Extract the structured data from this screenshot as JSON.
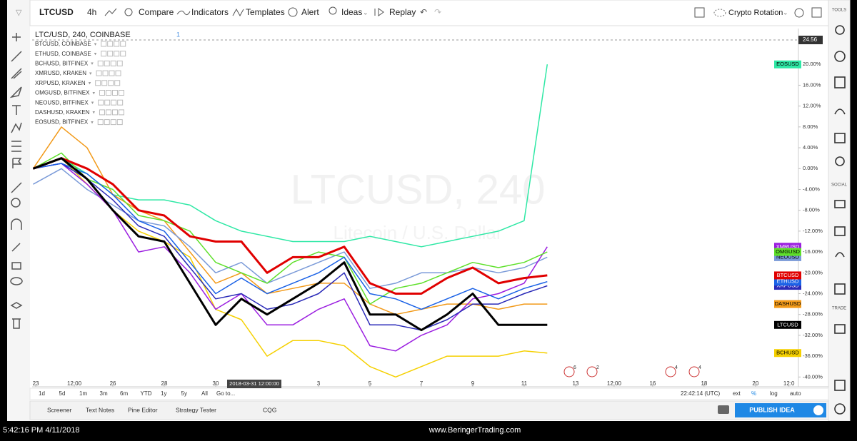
{
  "toolbar": {
    "symbol": "LTCUSD",
    "interval": "4h",
    "compare": "Compare",
    "indicators": "Indicators",
    "templates": "Templates",
    "alert": "Alert",
    "ideas": "Ideas",
    "replay": "Replay",
    "layout": "Crypto Rotation"
  },
  "sidebar": {
    "tools": "TOOLS",
    "social": "SOCIAL",
    "trade": "TRADE"
  },
  "legend": {
    "main": "LTC/USD, 240, COINBASE",
    "main_count": "1",
    "items": [
      "BTCUSD, COINBASE",
      "ETHUSD, COINBASE",
      "BCHUSD, BITFINEX",
      "XMRUSD, KRAKEN",
      "XRPUSD, KRAKEN",
      "OMGUSD, BITFINEX",
      "NEOUSD, BITFINEX",
      "DASHUSD, KRAKEN",
      "EOSUSD, BITFINEX"
    ]
  },
  "watermark": {
    "symbol": "LTCUSD, 240",
    "description": "Litecoin / U.S. Dollar"
  },
  "price_label": "24.56",
  "events": [
    "6",
    "2",
    "4",
    "4"
  ],
  "range_bar": {
    "buttons": [
      "1d",
      "5d",
      "1m",
      "3m",
      "6m",
      "YTD",
      "1y",
      "5y",
      "All"
    ],
    "goto": "Go to...",
    "clock": "22:42:14 (UTC)",
    "options": [
      "ext",
      "%",
      "log",
      "auto"
    ]
  },
  "bottom_tabs": [
    "Screener",
    "Text Notes",
    "Pine Editor",
    "Strategy Tester",
    "CQG"
  ],
  "publish": "PUBLISH IDEA",
  "taskbar": {
    "time": "5:42:16 PM 4/11/2018",
    "site": "www.BeringerTrading.com"
  },
  "chart_data": {
    "type": "line",
    "x": [
      22.9,
      24,
      25,
      26,
      27,
      28,
      29,
      30,
      31,
      32,
      33,
      34,
      35,
      36,
      37,
      38,
      39,
      40,
      41,
      42,
      42.9
    ],
    "xlim": [
      22.86,
      52.67
    ],
    "xticks": [
      {
        "value": 23,
        "label": "23"
      },
      {
        "value": 24.5,
        "label": "12:00"
      },
      {
        "value": 26,
        "label": "26"
      },
      {
        "value": 28,
        "label": "28"
      },
      {
        "value": 30,
        "label": "30"
      },
      {
        "value": 34,
        "label": "3"
      },
      {
        "value": 36,
        "label": "5"
      },
      {
        "value": 38,
        "label": "7"
      },
      {
        "value": 40,
        "label": "9"
      },
      {
        "value": 42,
        "label": "11"
      },
      {
        "value": 44,
        "label": "13"
      },
      {
        "value": 45.5,
        "label": "12:00"
      },
      {
        "value": 47,
        "label": "16"
      },
      {
        "value": 49,
        "label": "18"
      },
      {
        "value": 51,
        "label": "20"
      },
      {
        "value": 52.3,
        "label": "12:0"
      }
    ],
    "crosshair": {
      "value": 31.5,
      "label": "2018-03-31 12:00:00"
    },
    "ylim": [
      -41.6,
      25.1
    ],
    "yticks": [
      {
        "value": -40,
        "label": "-40.00%"
      },
      {
        "value": -36,
        "label": "-36.00%"
      },
      {
        "value": -32,
        "label": "-32.00%"
      },
      {
        "value": -28,
        "label": "-28.00%"
      },
      {
        "value": -24,
        "label": "-24.00%"
      },
      {
        "value": -20,
        "label": "-20.00%"
      },
      {
        "value": -16,
        "label": "-16.00%"
      },
      {
        "value": -12,
        "label": "-12.00%"
      },
      {
        "value": -8,
        "label": "-8.00%"
      },
      {
        "value": -4,
        "label": "-4.00%"
      },
      {
        "value": 0,
        "label": "0.00%"
      },
      {
        "value": 4,
        "label": "4.00%"
      },
      {
        "value": 8,
        "label": "8.00%"
      },
      {
        "value": 12,
        "label": "12.00%"
      },
      {
        "value": 16,
        "label": "16.00%"
      },
      {
        "value": 20,
        "label": "20.00%"
      }
    ],
    "grid": false,
    "series": [
      {
        "name": "EOSUSD",
        "color": "#2ee8a5",
        "line_width": 1.5,
        "values": [
          0,
          2,
          -1,
          -5,
          -6,
          -6,
          -7,
          -10,
          -12,
          -13,
          -14,
          -14,
          -14,
          -13,
          -14,
          -15,
          -14,
          -13,
          -12,
          -10,
          20
        ]
      },
      {
        "name": "BCHUSD",
        "color": "#f5d000",
        "line_width": 1.5,
        "values": [
          0,
          2,
          -3,
          -8,
          -12,
          -14,
          -17,
          -27,
          -29,
          -36,
          -33,
          -33,
          -34,
          -38,
          -40,
          -38,
          -36,
          -36,
          -36,
          -35,
          -35.4
        ]
      },
      {
        "name": "DASHUSD",
        "color": "#f29a1a",
        "line_width": 1.5,
        "values": [
          0,
          8,
          4,
          -5,
          -8,
          -10,
          -16,
          -22,
          -20,
          -24,
          -23,
          -22,
          -22,
          -26,
          -28,
          -27,
          -26,
          -26,
          -27,
          -26,
          -26
        ]
      },
      {
        "name": "NEOUSD",
        "color": "#7a9ad8",
        "line_width": 1.5,
        "values": [
          -3,
          0,
          -4,
          -7,
          -10,
          -11,
          -15,
          -20,
          -18,
          -22,
          -20,
          -18,
          -16,
          -23,
          -22,
          -20,
          -20,
          -19,
          -20,
          -19,
          -17
        ]
      },
      {
        "name": "XMRUSD",
        "color": "#9b1ee0",
        "line_width": 1.5,
        "values": [
          0,
          1,
          -3,
          -8,
          -16,
          -15,
          -20,
          -27,
          -24,
          -30,
          -30,
          -27,
          -25,
          -34,
          -35,
          -32,
          -30,
          -25,
          -24,
          -22,
          -15
        ]
      },
      {
        "name": "OMGUSD",
        "color": "#5ee02a",
        "line_width": 1.5,
        "values": [
          0,
          3,
          -2,
          -4,
          -9,
          -10,
          -12,
          -18,
          -20,
          -22,
          -18,
          -16,
          -17,
          -26,
          -23,
          -22,
          -20,
          -18,
          -19,
          -18,
          -16
        ]
      },
      {
        "name": "XRPUSD",
        "color": "#2a2ab8",
        "line_width": 1.5,
        "values": [
          0,
          1,
          -2,
          -6,
          -11,
          -13,
          -19,
          -25,
          -24,
          -27,
          -26,
          -24,
          -20,
          -30,
          -30,
          -31,
          -29,
          -26,
          -26,
          -24,
          -22.5
        ]
      },
      {
        "name": "ETHUSD",
        "color": "#1b62e6",
        "line_width": 1.5,
        "values": [
          0,
          1,
          -1,
          -5,
          -10,
          -12,
          -18,
          -24,
          -21,
          -24,
          -22,
          -20,
          -17,
          -24,
          -25,
          -27,
          -25,
          -23,
          -25,
          -23,
          -21.7
        ]
      },
      {
        "name": "BTCUSD",
        "color": "#e00000",
        "line_width": 3,
        "values": [
          0,
          2,
          0,
          -3,
          -8,
          -9,
          -13,
          -14,
          -14,
          -20,
          -17,
          -17,
          -15,
          -22,
          -24,
          -24,
          -21,
          -19,
          -22,
          -21,
          -20.5
        ]
      },
      {
        "name": "LTCUSD",
        "color": "#000000",
        "line_width": 3,
        "values": [
          0,
          2,
          -2,
          -8,
          -13,
          -14,
          -22,
          -30,
          -25,
          -28,
          -25,
          -22,
          -18,
          -28,
          -28,
          -31,
          -28,
          -24,
          -30,
          -30,
          -30
        ]
      }
    ]
  }
}
